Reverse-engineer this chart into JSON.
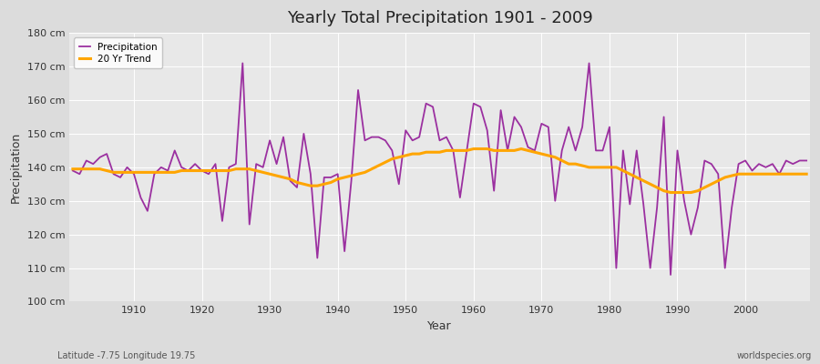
{
  "title": "Yearly Total Precipitation 1901 - 2009",
  "xlabel": "Year",
  "ylabel": "Precipitation",
  "subtitle": "Latitude -7.75 Longitude 19.75",
  "watermark": "worldspecies.org",
  "line_color": "#9b30a0",
  "trend_color": "#ffa500",
  "bg_color": "#dcdcdc",
  "plot_bg_color": "#e8e8e8",
  "ylim": [
    100,
    180
  ],
  "ytick_step": 10,
  "xticks": [
    1910,
    1920,
    1930,
    1940,
    1950,
    1960,
    1970,
    1980,
    1990,
    2000
  ],
  "years": [
    1901,
    1902,
    1903,
    1904,
    1905,
    1906,
    1907,
    1908,
    1909,
    1910,
    1911,
    1912,
    1913,
    1914,
    1915,
    1916,
    1917,
    1918,
    1919,
    1920,
    1921,
    1922,
    1923,
    1924,
    1925,
    1926,
    1927,
    1928,
    1929,
    1930,
    1931,
    1932,
    1933,
    1934,
    1935,
    1936,
    1937,
    1938,
    1939,
    1940,
    1941,
    1942,
    1943,
    1944,
    1945,
    1946,
    1947,
    1948,
    1949,
    1950,
    1951,
    1952,
    1953,
    1954,
    1955,
    1956,
    1957,
    1958,
    1959,
    1960,
    1961,
    1962,
    1963,
    1964,
    1965,
    1966,
    1967,
    1968,
    1969,
    1970,
    1971,
    1972,
    1973,
    1974,
    1975,
    1976,
    1977,
    1978,
    1979,
    1980,
    1981,
    1982,
    1983,
    1984,
    1985,
    1986,
    1987,
    1988,
    1989,
    1990,
    1991,
    1992,
    1993,
    1994,
    1995,
    1996,
    1997,
    1998,
    1999,
    2000,
    2001,
    2002,
    2003,
    2004,
    2005,
    2006,
    2007,
    2008,
    2009
  ],
  "precipitation": [
    139,
    138,
    142,
    141,
    143,
    144,
    138,
    137,
    140,
    138,
    131,
    127,
    138,
    140,
    139,
    145,
    140,
    139,
    141,
    139,
    138,
    141,
    124,
    140,
    141,
    171,
    123,
    141,
    140,
    148,
    141,
    149,
    136,
    134,
    150,
    138,
    113,
    137,
    137,
    138,
    115,
    136,
    163,
    148,
    149,
    149,
    148,
    145,
    135,
    151,
    148,
    149,
    159,
    158,
    148,
    149,
    145,
    131,
    145,
    159,
    158,
    151,
    133,
    157,
    145,
    155,
    152,
    146,
    145,
    153,
    152,
    130,
    145,
    152,
    145,
    152,
    171,
    145,
    145,
    152,
    110,
    145,
    129,
    145,
    129,
    110,
    128,
    155,
    108,
    145,
    130,
    120,
    128,
    142,
    141,
    138,
    110,
    128,
    141,
    142,
    139,
    141,
    140,
    141,
    138,
    142,
    141,
    142,
    142
  ],
  "trend": [
    139.5,
    139.5,
    139.5,
    139.5,
    139.5,
    139.0,
    138.5,
    138.5,
    138.5,
    138.5,
    138.5,
    138.5,
    138.5,
    138.5,
    138.5,
    138.5,
    139.0,
    139.0,
    139.0,
    139.0,
    139.0,
    139.0,
    139.0,
    139.0,
    139.5,
    139.5,
    139.5,
    139.0,
    138.5,
    138.0,
    137.5,
    137.0,
    136.5,
    135.5,
    135.0,
    134.5,
    134.5,
    135.0,
    135.5,
    136.5,
    137.0,
    137.5,
    138.0,
    138.5,
    139.5,
    140.5,
    141.5,
    142.5,
    143.0,
    143.5,
    144.0,
    144.0,
    144.5,
    144.5,
    144.5,
    145.0,
    145.0,
    145.0,
    145.0,
    145.5,
    145.5,
    145.5,
    145.0,
    145.0,
    145.0,
    145.0,
    145.5,
    145.0,
    144.5,
    144.0,
    143.5,
    143.0,
    142.0,
    141.0,
    141.0,
    140.5,
    140.0,
    140.0,
    140.0,
    140.0,
    140.0,
    139.0,
    138.0,
    137.0,
    136.0,
    135.0,
    134.0,
    133.0,
    132.5,
    132.5,
    132.5,
    132.5,
    133.0,
    134.0,
    135.0,
    136.0,
    137.0,
    137.5,
    138.0,
    138.0,
    138.0,
    138.0,
    138.0,
    138.0,
    138.0,
    138.0,
    138.0,
    138.0,
    138.0
  ]
}
